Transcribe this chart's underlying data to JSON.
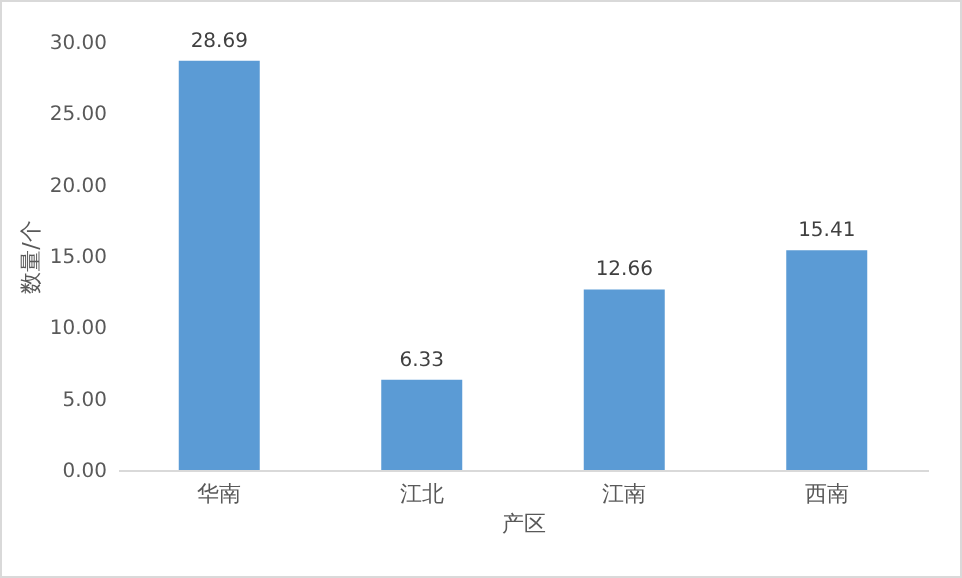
{
  "chart_data": {
    "type": "bar",
    "xlabel": "产区",
    "ylabel": "数量/个",
    "categories": [
      "华南",
      "江北",
      "江南",
      "西南"
    ],
    "values": [
      28.69,
      6.33,
      12.66,
      15.41
    ],
    "color": "#5b9bd5",
    "ylim": [
      0,
      30
    ],
    "yticks": [
      {
        "value": 0,
        "label": "0.00"
      },
      {
        "value": 5,
        "label": "5.00"
      },
      {
        "value": 10,
        "label": "10.00"
      },
      {
        "value": 15,
        "label": "15.00"
      },
      {
        "value": 20,
        "label": "20.00"
      },
      {
        "value": 25,
        "label": "25.00"
      },
      {
        "value": 30,
        "label": "30.00"
      }
    ],
    "grid": false,
    "data_labels": true
  }
}
